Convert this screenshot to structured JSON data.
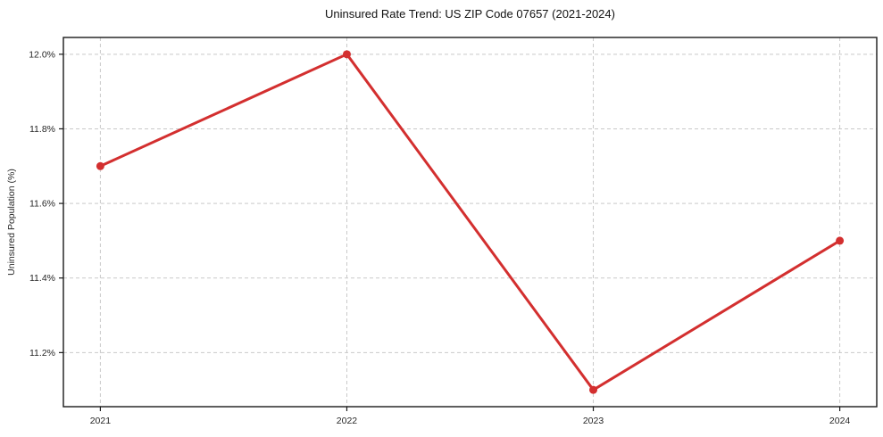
{
  "chart_data": {
    "type": "line",
    "title": "Uninsured Rate Trend: US ZIP Code 07657 (2021-2024)",
    "ylabel": "Uninsured Population (%)",
    "xlabel": "",
    "x": [
      2021,
      2022,
      2023,
      2024
    ],
    "values": [
      11.7,
      12.0,
      11.1,
      11.5
    ],
    "xticks": {
      "values": [
        2021,
        2022,
        2023,
        2024
      ],
      "labels": [
        "2021",
        "2022",
        "2023",
        "2024"
      ]
    },
    "yticks": {
      "values": [
        11.2,
        11.4,
        11.6,
        11.8,
        12.0
      ],
      "labels": [
        "11.2%",
        "11.4%",
        "11.6%",
        "11.8%",
        "12.0%"
      ]
    },
    "xlim": [
      2020.85,
      2024.15
    ],
    "ylim": [
      11.055,
      12.045
    ],
    "grid": true,
    "grid_style": "dashed",
    "legend": false,
    "line_color": "#d32f2f",
    "marker": "circle",
    "grid_color": "#c9c9c9",
    "spine_color": "#1a1a1a",
    "tick_label_color": "#262626",
    "background": "#ffffff"
  }
}
